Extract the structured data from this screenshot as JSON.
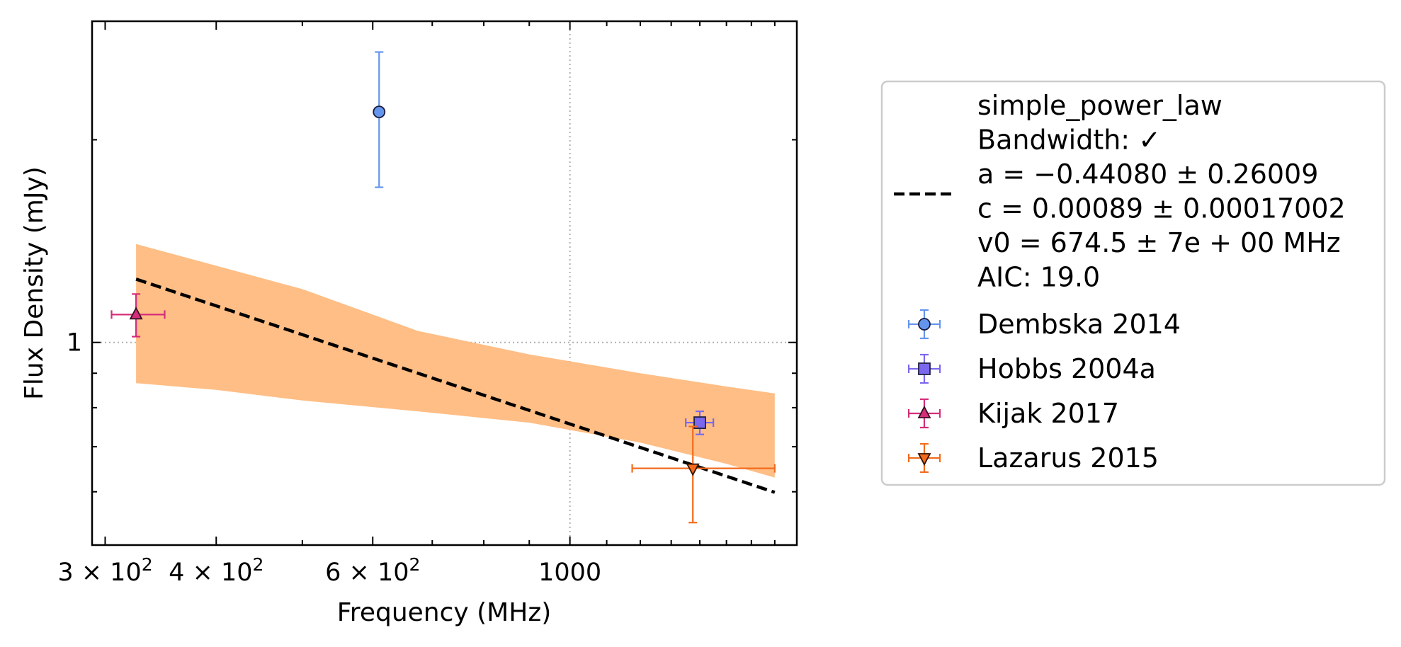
{
  "chart_data": {
    "type": "scatter",
    "xlabel": "Frequency (MHz)",
    "ylabel": "Flux Density (mJy)",
    "xscale": "log",
    "yscale": "log",
    "xlim": [
      290,
      1800
    ],
    "ylim": [
      0.5,
      3.0
    ],
    "x_ticks": [
      {
        "value": 300,
        "label": "3 × 10²"
      },
      {
        "value": 400,
        "label": "4 × 10²"
      },
      {
        "value": 600,
        "label": "6 × 10²"
      },
      {
        "value": 1000,
        "label": "1000"
      }
    ],
    "y_ticks": [
      {
        "value": 1,
        "label": "1"
      }
    ],
    "grid": "dotted at x=1000 and y=1",
    "legend_position": "right, outside plot",
    "fit": {
      "name": "simple_power_law",
      "legend_lines": [
        "simple_power_law",
        "Bandwidth: ✓",
        "a = −0.44080 ± 0.26009",
        "c = 0.00089 ± 0.00017002",
        "v0 = 674.5 ± 7e + 00 MHz",
        "AIC: 19.0"
      ],
      "a": -0.4408,
      "v0": 674.5,
      "norm_at_v0": 0.9,
      "x_range": [
        325,
        1700
      ],
      "band_points": [
        {
          "x": 325,
          "low": 0.87,
          "high": 1.4
        },
        {
          "x": 400,
          "low": 0.85,
          "high": 1.3
        },
        {
          "x": 500,
          "low": 0.82,
          "high": 1.2
        },
        {
          "x": 674.5,
          "low": 0.79,
          "high": 1.04
        },
        {
          "x": 900,
          "low": 0.76,
          "high": 0.96
        },
        {
          "x": 1200,
          "low": 0.71,
          "high": 0.9
        },
        {
          "x": 1500,
          "low": 0.66,
          "high": 0.86
        },
        {
          "x": 1700,
          "low": 0.63,
          "high": 0.84
        }
      ],
      "color": "#000000",
      "band_color": "#ffbe85"
    },
    "series": [
      {
        "name": "Dembska 2014",
        "marker": "circle",
        "color": "#6495ed",
        "edge": "#1a1a3a",
        "points": [
          {
            "x": 610,
            "y": 2.2,
            "yerr_low": 1.7,
            "yerr_high": 2.7
          }
        ]
      },
      {
        "name": "Hobbs 2004a",
        "marker": "square",
        "color": "#7b68ee",
        "edge": "#222244",
        "points": [
          {
            "x": 1400,
            "y": 0.76,
            "xerr_low": 1350,
            "xerr_high": 1450,
            "yerr_low": 0.73,
            "yerr_high": 0.79
          }
        ]
      },
      {
        "name": "Kijak 2017",
        "marker": "triangle-up",
        "color": "#d42d7a",
        "edge": "#331122",
        "points": [
          {
            "x": 325,
            "y": 1.1,
            "xerr_low": 305,
            "xerr_high": 350,
            "yerr_low": 1.02,
            "yerr_high": 1.18
          }
        ]
      },
      {
        "name": "Lazarus 2015",
        "marker": "triangle-down",
        "color": "#f26b1d",
        "edge": "#331100",
        "points": [
          {
            "x": 1375,
            "y": 0.65,
            "xerr_low": 1175,
            "xerr_high": 1700,
            "yerr_low": 0.54,
            "yerr_high": 0.75
          }
        ]
      }
    ]
  }
}
